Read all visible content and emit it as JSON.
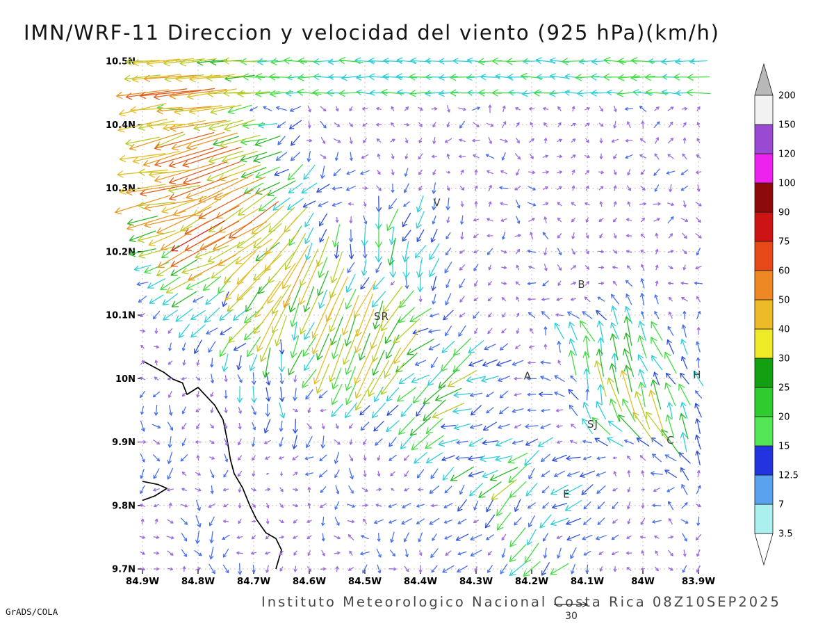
{
  "title": "IMN/WRF-11 Direccion y velocidad del viento (925 hPa)(km/h)",
  "footer": {
    "institute": "Instituto Meteorologico Nacional Costa Rica 08Z10SEP2025",
    "credit": "GrADS/COLA",
    "ref_vector_label": "30"
  },
  "chart_data": {
    "type": "vector_field",
    "title": "IMN/WRF-11 Direccion y velocidad del viento (925 hPa)(km/h)",
    "units": "km/h",
    "level": "925 hPa",
    "datetime": "08Z10SEP2025",
    "x_axis": {
      "range": [
        -84.9,
        -83.9
      ],
      "tick_step": 0.1,
      "tick_labels": [
        "84.9W",
        "84.8W",
        "84.7W",
        "84.6W",
        "84.5W",
        "84.4W",
        "84.3W",
        "84.2W",
        "84.1W",
        "84W",
        "83.9W"
      ]
    },
    "y_axis": {
      "range": [
        9.7,
        10.5
      ],
      "tick_step": 0.1,
      "tick_labels": [
        "9.7N",
        "9.8N",
        "9.9N",
        "10N",
        "10.1N",
        "10.2N",
        "10.3N",
        "10.4N",
        "10.5N"
      ]
    },
    "grid": {
      "style": "dotted",
      "color": "#b4b4b4"
    },
    "reference_vector": {
      "value": 30,
      "label": "30"
    },
    "colorbar": {
      "levels": [
        3.5,
        7,
        12.5,
        15,
        20,
        25,
        30,
        40,
        50,
        60,
        75,
        90,
        100,
        120,
        150,
        200
      ],
      "colors": [
        "#aaf0ee",
        "#5aa2ee",
        "#2233e0",
        "#55e655",
        "#2ecc2e",
        "#12a012",
        "#eeea28",
        "#eebb28",
        "#ee8822",
        "#e64818",
        "#cc1414",
        "#8e0a0a",
        "#ee22ee",
        "#9a4ad2",
        "#f2f2f2"
      ],
      "under_color": "#ffffff",
      "over_color": "#b8b8b8"
    },
    "arrow_palette": [
      {
        "max": 7,
        "color": "#9d6ce0"
      },
      {
        "max": 12.5,
        "color": "#4a72e8"
      },
      {
        "max": 15,
        "color": "#2d4fd8"
      },
      {
        "max": 20,
        "color": "#30cfd8"
      },
      {
        "max": 25,
        "color": "#44dd44"
      },
      {
        "max": 30,
        "color": "#2ab82a"
      },
      {
        "max": 40,
        "color": "#b8cc2c"
      },
      {
        "max": 50,
        "color": "#e2be28"
      },
      {
        "max": 60,
        "color": "#e89828"
      },
      {
        "max": 75,
        "color": "#e06020"
      },
      {
        "max": 9999,
        "color": "#d42418"
      }
    ],
    "stations": [
      {
        "label": "V",
        "lon": -84.37,
        "lat": 10.277
      },
      {
        "label": "B",
        "lon": -84.11,
        "lat": 10.148
      },
      {
        "label": "SR",
        "lon": -84.47,
        "lat": 10.098
      },
      {
        "label": "A",
        "lon": -84.207,
        "lat": 10.004
      },
      {
        "label": "H",
        "lon": -83.902,
        "lat": 10.006
      },
      {
        "label": "SJ",
        "lon": -84.09,
        "lat": 9.928
      },
      {
        "label": "C",
        "lon": -83.95,
        "lat": 9.903
      },
      {
        "label": "E",
        "lon": -84.137,
        "lat": 9.818
      }
    ],
    "wind_field": {
      "lon_step": 0.025,
      "lat_step": 0.025,
      "top_band": {
        "lat_min": 10.425,
        "u_min": 15,
        "u_max": 23,
        "v_jitter": 5
      },
      "features": [
        {
          "lon": -84.84,
          "lat": 10.34,
          "r": 0.1,
          "u": -40,
          "v": -6
        },
        {
          "lon": -84.87,
          "lat": 10.47,
          "r": 0.07,
          "u": -12,
          "v": -2
        },
        {
          "lon": -84.76,
          "lat": 10.23,
          "r": 0.09,
          "u": -26,
          "v": -16
        },
        {
          "lon": -84.62,
          "lat": 10.13,
          "r": 0.1,
          "u": -10,
          "v": -24
        },
        {
          "lon": -84.5,
          "lat": 10.05,
          "r": 0.08,
          "u": -6,
          "v": -18
        },
        {
          "lon": -84.37,
          "lat": 10.0,
          "r": 0.09,
          "u": -15,
          "v": -7
        },
        {
          "lon": -84.4,
          "lat": 10.24,
          "r": 0.06,
          "u": -4,
          "v": -14
        },
        {
          "lon": -84.04,
          "lat": 10.01,
          "r": 0.08,
          "u": -10,
          "v": 26
        },
        {
          "lon": -84.22,
          "lat": 9.8,
          "r": 0.12,
          "u": -13,
          "v": -10
        },
        {
          "lon": -83.95,
          "lat": 9.93,
          "r": 0.06,
          "u": -6,
          "v": 12
        },
        {
          "lon": -84.75,
          "lat": 9.85,
          "r": 0.18,
          "u": 0,
          "v": -4
        }
      ]
    },
    "coastline": [
      [
        [
          -84.9,
          10.028
        ],
        [
          -84.862,
          10.01
        ],
        [
          -84.845,
          9.999
        ],
        [
          -84.828,
          9.993
        ],
        [
          -84.82,
          9.975
        ],
        [
          -84.8,
          9.986
        ],
        [
          -84.785,
          9.972
        ],
        [
          -84.77,
          9.958
        ],
        [
          -84.755,
          9.935
        ],
        [
          -84.748,
          9.905
        ],
        [
          -84.742,
          9.873
        ],
        [
          -84.735,
          9.85
        ],
        [
          -84.72,
          9.828
        ],
        [
          -84.707,
          9.8
        ],
        [
          -84.695,
          9.778
        ],
        [
          -84.678,
          9.757
        ],
        [
          -84.66,
          9.748
        ],
        [
          -84.65,
          9.73
        ],
        [
          -84.655,
          9.715
        ],
        [
          -84.66,
          9.7
        ]
      ],
      [
        [
          -84.9,
          9.838
        ],
        [
          -84.872,
          9.833
        ],
        [
          -84.856,
          9.827
        ],
        [
          -84.878,
          9.815
        ],
        [
          -84.9,
          9.808
        ]
      ]
    ]
  }
}
